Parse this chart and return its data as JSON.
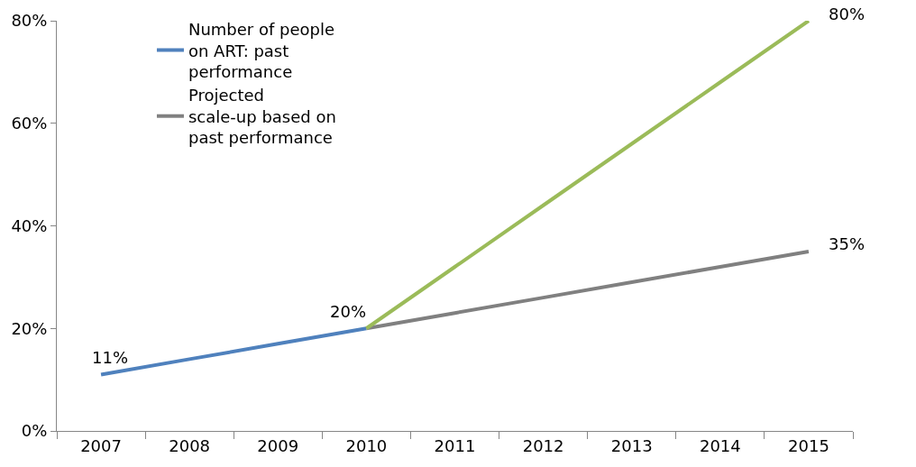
{
  "chart_data": {
    "type": "line",
    "categories": [
      "2007",
      "2008",
      "2009",
      "2010",
      "2011",
      "2012",
      "2013",
      "2014",
      "2015"
    ],
    "series": [
      {
        "name": "Number of people on ART: past performance",
        "color": "#4f81bd",
        "values": [
          11,
          14,
          17,
          20,
          null,
          null,
          null,
          null,
          null
        ]
      },
      {
        "name": "Projected scale-up based on past performance",
        "color": "#808080",
        "values": [
          null,
          null,
          null,
          20,
          23,
          26,
          29,
          32,
          35
        ]
      },
      {
        "color": "#9bbb59",
        "values": [
          null,
          null,
          null,
          20,
          32,
          44,
          56,
          68,
          80
        ]
      }
    ],
    "ylim": [
      0,
      80
    ],
    "yticks": [
      {
        "value": 0,
        "label": "0%"
      },
      {
        "value": 20,
        "label": "20%"
      },
      {
        "value": 40,
        "label": "40%"
      },
      {
        "value": 60,
        "label": "60%"
      },
      {
        "value": 80,
        "label": "80%"
      }
    ],
    "annotations": [
      {
        "text": "11%",
        "x": "2007",
        "y": 11
      },
      {
        "text": "20%",
        "x": "2010",
        "y": 20
      },
      {
        "text": "80%",
        "x": "2015",
        "y": 80
      },
      {
        "text": "35%",
        "x": "2015",
        "y": 35
      }
    ],
    "legend": "top left",
    "marker": "none",
    "line_style": "solid"
  }
}
